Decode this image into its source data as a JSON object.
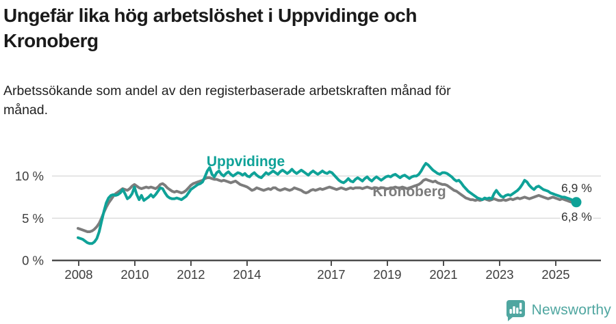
{
  "header": {
    "title_lines": [
      "Ungefär lika hög arbetslöshet i Uppvidinge och",
      "Kronoberg"
    ],
    "subtitle_lines": [
      "Arbetssökande som andel av den registerbaserade arbetskraften månad för",
      "månad."
    ]
  },
  "chart_data": {
    "type": "line",
    "unit": "%",
    "x_start_year": 2008,
    "x_resolution": "monthly",
    "x_end_label_period": "mid-2025",
    "grid": true,
    "ylim": [
      0,
      12.5
    ],
    "y_ticks": [
      {
        "value": 0,
        "label": "0 %"
      },
      {
        "value": 5,
        "label": "5 %"
      },
      {
        "value": 10,
        "label": "10 %"
      }
    ],
    "x_tick_years": [
      2008,
      2010,
      2012,
      2014,
      2017,
      2019,
      2021,
      2023,
      2025
    ],
    "x_tick_labels": [
      "2008",
      "2010",
      "2012",
      "2014",
      "2017",
      "2019",
      "2021",
      "2023",
      "2025"
    ],
    "series": [
      {
        "name": "Uppvidinge",
        "color": "#0fa298",
        "end_label": "6,9 %",
        "last_value": 6.9,
        "end_dot": true,
        "values": [
          2.7,
          2.6,
          2.5,
          2.3,
          2.1,
          2.0,
          2.0,
          2.2,
          2.6,
          3.4,
          4.6,
          5.8,
          6.8,
          7.4,
          7.7,
          7.8,
          7.7,
          7.8,
          8.0,
          8.4,
          7.9,
          7.3,
          7.5,
          7.9,
          8.7,
          7.8,
          7.2,
          7.7,
          7.1,
          7.3,
          7.5,
          7.8,
          7.5,
          7.8,
          8.2,
          8.6,
          8.5,
          8.0,
          7.6,
          7.4,
          7.3,
          7.3,
          7.4,
          7.3,
          7.2,
          7.4,
          7.6,
          8.0,
          8.4,
          8.6,
          8.8,
          9.0,
          9.1,
          9.3,
          9.9,
          10.6,
          11.0,
          10.2,
          9.9,
          10.4,
          10.6,
          10.2,
          10.0,
          10.3,
          10.5,
          10.2,
          10.0,
          10.2,
          10.4,
          10.3,
          10.1,
          10.3,
          10.0,
          9.9,
          10.2,
          10.4,
          10.1,
          9.9,
          9.8,
          10.1,
          10.4,
          10.2,
          10.4,
          10.6,
          10.4,
          10.2,
          10.5,
          10.7,
          10.5,
          10.3,
          10.5,
          10.8,
          10.5,
          10.3,
          10.5,
          10.7,
          10.5,
          10.3,
          10.1,
          10.4,
          10.6,
          10.4,
          10.2,
          10.4,
          10.6,
          10.4,
          10.3,
          10.5,
          10.4,
          10.1,
          9.8,
          9.5,
          9.3,
          9.2,
          9.4,
          9.7,
          9.4,
          9.3,
          9.6,
          9.8,
          9.6,
          9.4,
          9.7,
          9.9,
          9.6,
          9.4,
          9.7,
          9.9,
          9.7,
          9.5,
          9.7,
          9.9,
          10.0,
          9.9,
          10.1,
          10.2,
          10.0,
          9.8,
          10.0,
          10.1,
          9.9,
          9.7,
          9.9,
          10.0,
          10.0,
          10.2,
          10.6,
          11.1,
          11.5,
          11.3,
          11.0,
          10.7,
          10.5,
          10.3,
          10.2,
          10.4,
          10.4,
          10.3,
          10.1,
          9.9,
          9.6,
          9.4,
          9.5,
          9.2,
          8.8,
          8.5,
          8.2,
          8.0,
          7.8,
          7.6,
          7.4,
          7.3,
          7.2,
          7.4,
          7.3,
          7.4,
          7.3,
          7.9,
          8.3,
          7.9,
          7.6,
          7.5,
          7.7,
          7.8,
          7.7,
          7.9,
          8.1,
          8.3,
          8.6,
          9.0,
          9.5,
          9.3,
          8.9,
          8.6,
          8.4,
          8.7,
          8.8,
          8.6,
          8.4,
          8.3,
          8.2,
          8.0,
          7.9,
          7.8,
          7.7,
          7.6,
          7.5,
          7.5,
          7.4,
          7.3,
          7.2,
          7.0,
          6.9
        ]
      },
      {
        "name": "Kronoberg",
        "color": "#7c7c7c",
        "end_label": "6,8 %",
        "last_value": 6.8,
        "end_dot": false,
        "values": [
          3.8,
          3.7,
          3.6,
          3.5,
          3.4,
          3.4,
          3.5,
          3.7,
          4.0,
          4.4,
          5.0,
          5.7,
          6.3,
          6.8,
          7.2,
          7.6,
          7.9,
          8.1,
          8.3,
          8.5,
          8.4,
          8.3,
          8.5,
          8.8,
          9.0,
          8.8,
          8.6,
          8.5,
          8.6,
          8.7,
          8.6,
          8.7,
          8.6,
          8.5,
          8.7,
          9.0,
          9.1,
          8.9,
          8.6,
          8.4,
          8.2,
          8.1,
          8.2,
          8.1,
          8.0,
          8.1,
          8.3,
          8.6,
          8.9,
          9.1,
          9.2,
          9.3,
          9.4,
          9.5,
          9.7,
          9.8,
          9.8,
          9.7,
          9.6,
          9.6,
          9.5,
          9.4,
          9.5,
          9.4,
          9.3,
          9.2,
          9.3,
          9.4,
          9.2,
          9.0,
          8.9,
          8.8,
          8.7,
          8.5,
          8.3,
          8.4,
          8.6,
          8.5,
          8.4,
          8.3,
          8.4,
          8.5,
          8.4,
          8.6,
          8.6,
          8.4,
          8.3,
          8.4,
          8.5,
          8.4,
          8.3,
          8.4,
          8.6,
          8.5,
          8.4,
          8.3,
          8.1,
          8.0,
          8.1,
          8.3,
          8.4,
          8.3,
          8.4,
          8.5,
          8.4,
          8.5,
          8.6,
          8.7,
          8.6,
          8.5,
          8.4,
          8.5,
          8.6,
          8.5,
          8.4,
          8.5,
          8.6,
          8.5,
          8.6,
          8.6,
          8.6,
          8.5,
          8.6,
          8.7,
          8.6,
          8.5,
          8.6,
          8.6,
          8.5,
          8.6,
          8.6,
          8.5,
          8.5,
          8.6,
          8.6,
          8.7,
          8.6,
          8.6,
          8.7,
          8.6,
          8.5,
          8.6,
          8.7,
          8.8,
          8.9,
          9.0,
          9.2,
          9.5,
          9.6,
          9.5,
          9.4,
          9.3,
          9.4,
          9.2,
          9.1,
          9.0,
          9.0,
          8.9,
          8.7,
          8.5,
          8.3,
          8.2,
          8.0,
          7.8,
          7.6,
          7.4,
          7.3,
          7.2,
          7.2,
          7.1,
          7.2,
          7.1,
          7.2,
          7.3,
          7.2,
          7.1,
          7.2,
          7.3,
          7.2,
          7.1,
          7.1,
          7.2,
          7.1,
          7.2,
          7.3,
          7.2,
          7.3,
          7.4,
          7.3,
          7.4,
          7.5,
          7.4,
          7.3,
          7.4,
          7.5,
          7.6,
          7.7,
          7.6,
          7.5,
          7.4,
          7.3,
          7.4,
          7.5,
          7.4,
          7.3,
          7.2,
          7.3,
          7.2,
          7.1,
          7.0,
          6.9,
          6.9,
          6.8
        ]
      }
    ],
    "colors": {
      "grid": "#dcdcdc",
      "axis": "#4d4d4d",
      "tick_text": "#3d3d3d",
      "end_label_text": "#333333"
    }
  },
  "footer": {
    "brand": "Newsworthy",
    "brand_color": "#4fa6a0"
  }
}
